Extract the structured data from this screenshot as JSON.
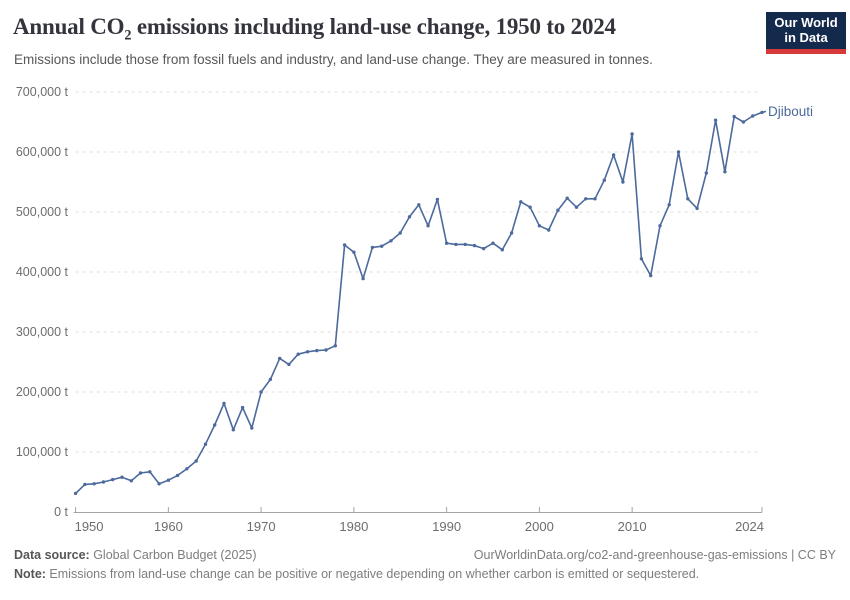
{
  "header": {
    "title_pre": "Annual CO",
    "title_sub": "2",
    "title_post": " emissions including land-use change, 1950 to 2024",
    "subtitle": "Emissions include those from fossil fuels and industry, and land-use change. They are measured in tonnes."
  },
  "logo": {
    "line1": "Our World",
    "line2": "in Data",
    "bg_color": "#142a4c",
    "bar_color": "#d73a3a"
  },
  "chart_data": {
    "type": "line",
    "title": "Annual CO2 emissions including land-use change, 1950 to 2024",
    "entity_label": "Djibouti",
    "unit": "t",
    "xlim": [
      1950,
      2024
    ],
    "ylim": [
      0,
      700000
    ],
    "grid": "horizontal-dashed",
    "legend_position": "end-of-line",
    "line_color": "#4c6a9c",
    "axis_text_color": "#6d6d6d",
    "grid_color": "#dcdcdc",
    "axis_line_color": "#a3a3a3",
    "xticks": [
      1950,
      1960,
      1970,
      1980,
      1990,
      2000,
      2010,
      2024
    ],
    "yticks": [
      {
        "value": 0,
        "label": "0 t"
      },
      {
        "value": 100000,
        "label": "100,000 t"
      },
      {
        "value": 200000,
        "label": "200,000 t"
      },
      {
        "value": 300000,
        "label": "300,000 t"
      },
      {
        "value": 400000,
        "label": "400,000 t"
      },
      {
        "value": 500000,
        "label": "500,000 t"
      },
      {
        "value": 600000,
        "label": "600,000 t"
      },
      {
        "value": 700000,
        "label": "700,000 t"
      }
    ],
    "years": [
      1950,
      1951,
      1952,
      1953,
      1954,
      1955,
      1956,
      1957,
      1958,
      1959,
      1960,
      1961,
      1962,
      1963,
      1964,
      1965,
      1966,
      1967,
      1968,
      1969,
      1970,
      1971,
      1972,
      1973,
      1974,
      1975,
      1976,
      1977,
      1978,
      1979,
      1980,
      1981,
      1982,
      1983,
      1984,
      1985,
      1986,
      1987,
      1988,
      1989,
      1990,
      1991,
      1992,
      1993,
      1994,
      1995,
      1996,
      1997,
      1998,
      1999,
      2000,
      2001,
      2002,
      2003,
      2004,
      2005,
      2006,
      2007,
      2008,
      2009,
      2010,
      2011,
      2012,
      2013,
      2014,
      2015,
      2016,
      2017,
      2018,
      2019,
      2020,
      2021,
      2022,
      2023,
      2024
    ],
    "values": [
      31000,
      46000,
      47000,
      50000,
      54000,
      58000,
      52000,
      65000,
      67000,
      47000,
      53000,
      61000,
      72000,
      85000,
      113000,
      145000,
      181000,
      137000,
      174000,
      140000,
      200000,
      221000,
      256000,
      246000,
      263000,
      267000,
      269000,
      270000,
      277000,
      445000,
      433000,
      389000,
      441000,
      443000,
      452000,
      465000,
      492000,
      512000,
      477000,
      521000,
      448000,
      446000,
      446000,
      444000,
      439000,
      448000,
      437000,
      465000,
      517000,
      508000,
      477000,
      470000,
      503000,
      523000,
      508000,
      522000,
      522000,
      553000,
      595000,
      550000,
      630000,
      422000,
      394000,
      477000,
      512000,
      600000,
      522000,
      506000,
      565000,
      653000,
      567000,
      659000,
      650000,
      660000,
      666000
    ]
  },
  "footer": {
    "source_label": "Data source:",
    "source_text": " Global Carbon Budget (2025)",
    "link_text": "OurWorldinData.org/co2-and-greenhouse-gas-emissions | CC BY",
    "note_label": "Note:",
    "note_text": " Emissions from land-use change can be positive or negative depending on whether carbon is emitted or sequestered."
  }
}
